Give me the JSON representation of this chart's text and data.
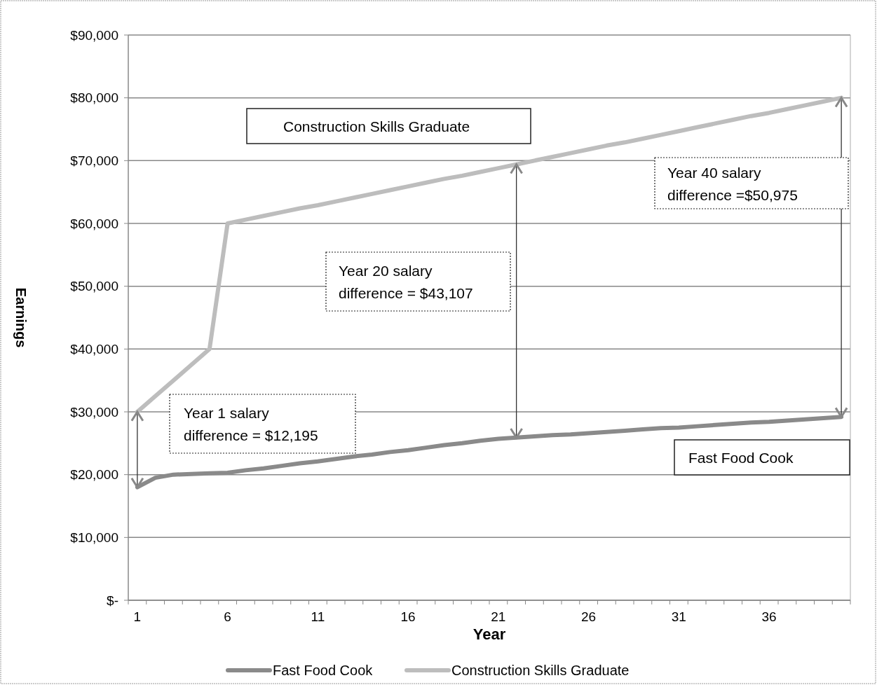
{
  "chart_data": {
    "type": "line",
    "xlabel": "Year",
    "ylabel": "Earnings",
    "categories": [
      "1",
      null,
      null,
      null,
      null,
      "6",
      null,
      null,
      null,
      null,
      "11",
      null,
      null,
      null,
      null,
      "16",
      null,
      null,
      null,
      null,
      "21",
      null,
      null,
      null,
      null,
      "26",
      null,
      null,
      null,
      null,
      "31",
      null,
      null,
      null,
      null,
      "36",
      null,
      null,
      null,
      null
    ],
    "series": [
      {
        "name": "Fast Food Cook",
        "color": "#8a8a8a",
        "values": [
          18000,
          19500,
          20000,
          20100,
          20200,
          20300,
          20700,
          21000,
          21400,
          21800,
          22100,
          22500,
          22900,
          23200,
          23600,
          23900,
          24300,
          24700,
          25000,
          25400,
          25700,
          25900,
          26100,
          26300,
          26400,
          26600,
          26800,
          27000,
          27200,
          27400,
          27500,
          27700,
          27900,
          28100,
          28300,
          28400,
          28600,
          28800,
          29000,
          29200
        ]
      },
      {
        "name": "Construction Skills Graduate",
        "color": "#bdbdbd",
        "values": [
          30000,
          32500,
          35000,
          37500,
          40000,
          60000,
          60600,
          61200,
          61800,
          62400,
          62900,
          63500,
          64100,
          64700,
          65300,
          65900,
          66500,
          67100,
          67600,
          68200,
          68800,
          69400,
          70000,
          70600,
          71200,
          71800,
          72400,
          72900,
          73500,
          74100,
          74700,
          75300,
          75900,
          76500,
          77100,
          77600,
          78200,
          78800,
          79400,
          80000
        ]
      }
    ],
    "ylim": [
      0,
      90000
    ],
    "yticks": [
      {
        "value": 0,
        "label": "$-"
      },
      {
        "value": 10000,
        "label": "$10,000"
      },
      {
        "value": 20000,
        "label": "$20,000"
      },
      {
        "value": 30000,
        "label": "$30,000"
      },
      {
        "value": 40000,
        "label": "$40,000"
      },
      {
        "value": 50000,
        "label": "$50,000"
      },
      {
        "value": 60000,
        "label": "$60,000"
      },
      {
        "value": 70000,
        "label": "$70,000"
      },
      {
        "value": 80000,
        "label": "$80,000"
      },
      {
        "value": 90000,
        "label": "$90,000"
      }
    ],
    "grid": "y",
    "legend": "bottom",
    "marker": "none",
    "annotations": [
      "Construction Skills Graduate",
      "Fast Food Cook",
      "Year 1 salary\ndifference = $12,195",
      "Year 20 salary\ndifference = $43,107",
      "Year 40 salary\ndifference =$50,975"
    ]
  }
}
